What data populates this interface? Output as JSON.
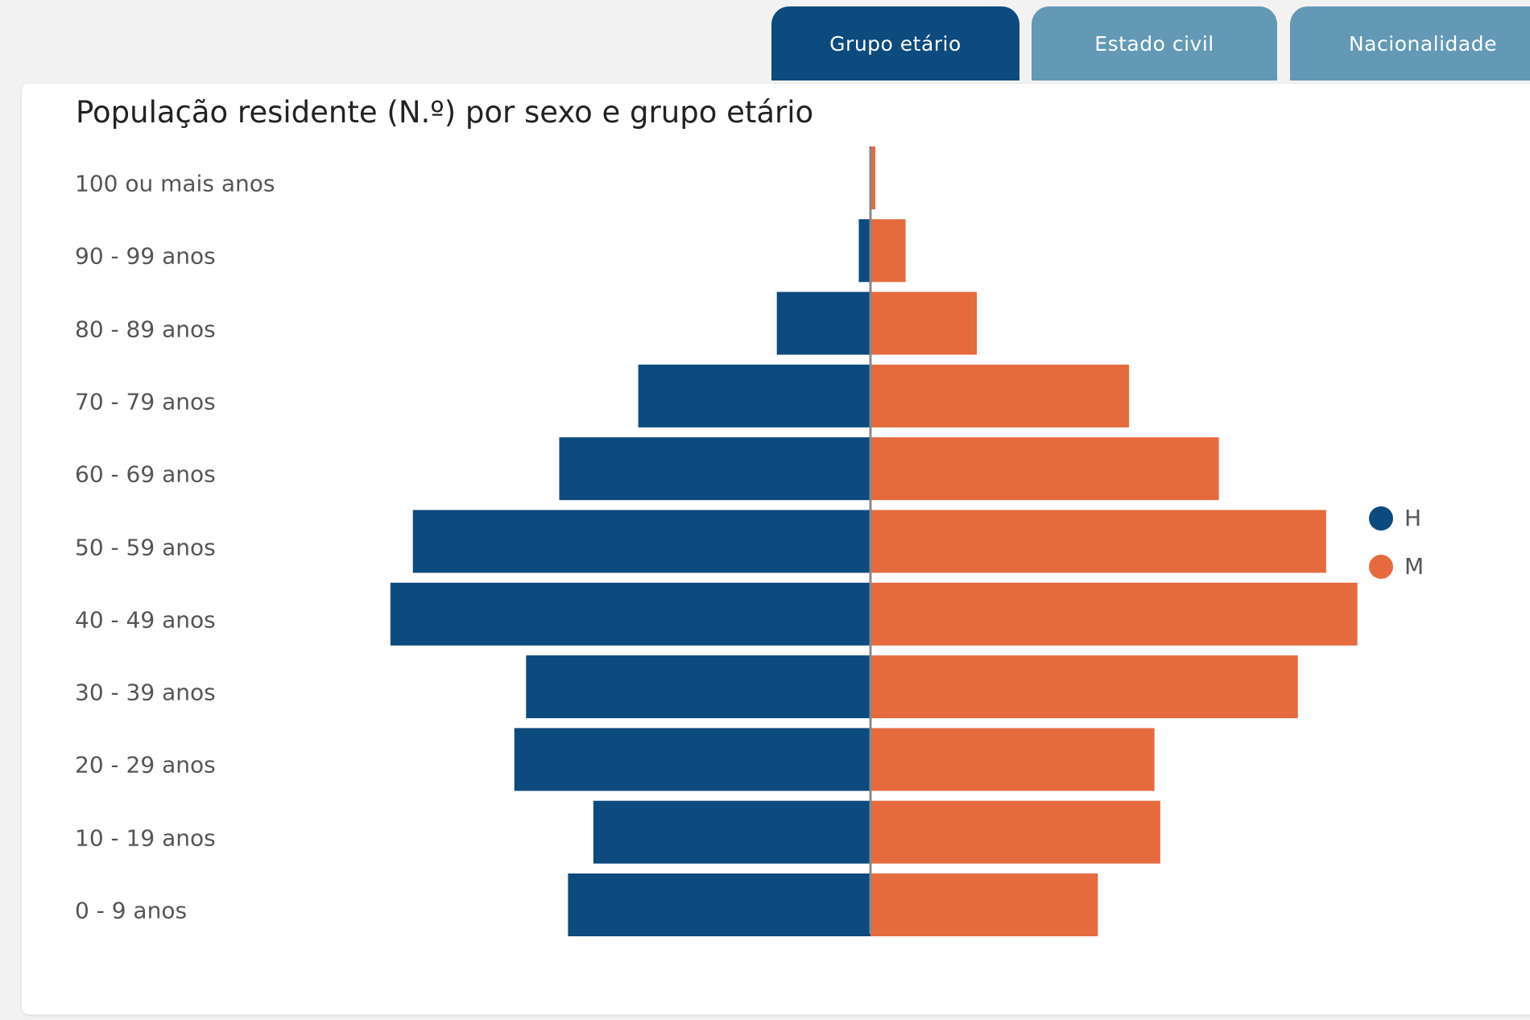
{
  "tabs": [
    {
      "label": "Grupo etário",
      "active": true
    },
    {
      "label": "Estado civil",
      "active": false
    },
    {
      "label": "Nacionalidade",
      "active": false
    }
  ],
  "colors": {
    "H": "#0d4a7e",
    "M": "#e56b3f",
    "tab_active": "#0d4a7e",
    "tab_inactive": "#6399b5"
  },
  "chart_data": {
    "type": "bar",
    "subtype": "population-pyramid",
    "title": "População residente (N.º) por sexo e grupo etário",
    "categories": [
      "100 ou mais anos",
      "90 - 99 anos",
      "80 - 89 anos",
      "70 - 79 anos",
      "60 - 69 anos",
      "50 - 59 anos",
      "40 - 49 anos",
      "30 - 39 anos",
      "20 - 29 anos",
      "10 - 19 anos",
      "0 - 9 anos"
    ],
    "series": [
      {
        "name": "H",
        "values": [
          1,
          12,
          96,
          238,
          319,
          469,
          492,
          353,
          365,
          284,
          310
        ]
      },
      {
        "name": "M",
        "values": [
          5,
          36,
          109,
          265,
          357,
          467,
          499,
          438,
          291,
          297,
          233
        ]
      }
    ],
    "note_units": "relative estimates (no axis values shown)",
    "legend": [
      "H",
      "M"
    ],
    "legend_position": "right",
    "grid": false
  }
}
